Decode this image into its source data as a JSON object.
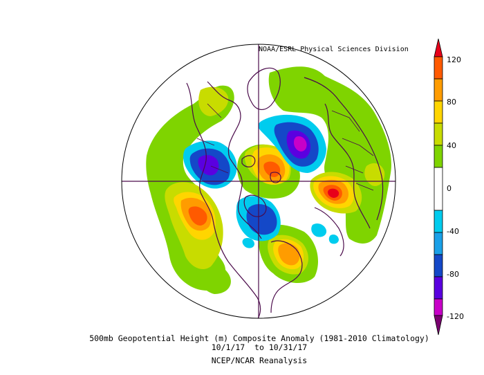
{
  "credit": "NOAA/ESRL Physical Sciences Division",
  "caption": {
    "title": "500mb Geopotential Height (m) Composite Anomaly (1981-2010 Climatology)",
    "dates": "10/1/17  to 10/31/17",
    "source": "NCEP/NCAR Reanalysis"
  },
  "colorbar": {
    "tick_labels": [
      "120",
      "80",
      "40",
      "0",
      "-40",
      "-80",
      "-120"
    ],
    "colors": {
      "extreme_pos": "#e8001a",
      "pos_120": "#ff5a00",
      "pos_100": "#ff9c00",
      "pos_80": "#ffd500",
      "pos_60": "#c8dc00",
      "pos_40": "#7fd400",
      "neutral": "#ffffff",
      "neg_20": "#00ccee",
      "neg_40": "#1aa0e8",
      "neg_60": "#1448c8",
      "neg_80": "#5a00e0",
      "neg_100": "#c800c8",
      "extreme_neg": "#7a0070"
    }
  },
  "map": {
    "coastline_color": "#4a0a4a"
  }
}
